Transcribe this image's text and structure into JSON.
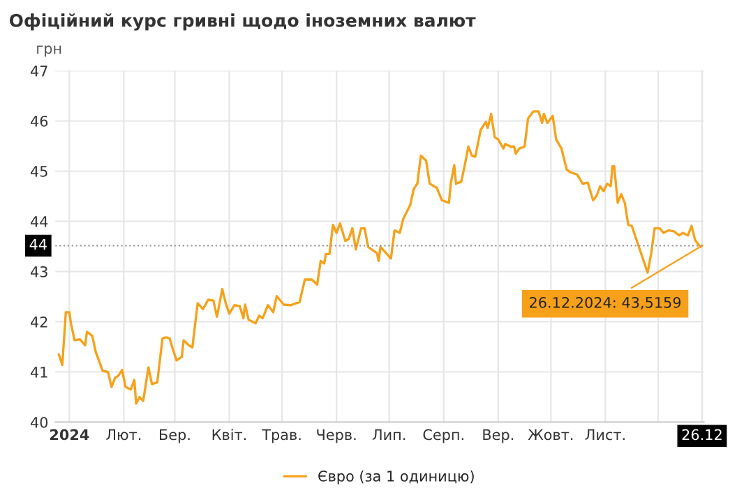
{
  "chart_data": {
    "type": "line",
    "title": "Офіційний курс гривні щодо іноземних валют",
    "ylabel": "грн",
    "x": [
      "2023-12-26",
      "2023-12-28",
      "2023-12-30",
      "2024-01-01",
      "2024-01-02",
      "2024-01-04",
      "2024-01-07",
      "2024-01-10",
      "2024-01-11",
      "2024-01-14",
      "2024-01-16",
      "2024-01-20",
      "2024-01-23",
      "2024-01-25",
      "2024-01-27",
      "2024-01-29",
      "2024-01-31",
      "2024-02-02",
      "2024-02-05",
      "2024-02-07",
      "2024-02-08",
      "2024-02-10",
      "2024-02-12",
      "2024-02-15",
      "2024-02-17",
      "2024-02-20",
      "2024-02-23",
      "2024-02-25",
      "2024-02-27",
      "2024-02-29",
      "2024-03-02",
      "2024-03-05",
      "2024-03-06",
      "2024-03-09",
      "2024-03-11",
      "2024-03-14",
      "2024-03-17",
      "2024-03-20",
      "2024-03-23",
      "2024-03-25",
      "2024-03-28",
      "2024-03-30",
      "2024-04-01",
      "2024-04-04",
      "2024-04-07",
      "2024-04-09",
      "2024-04-10",
      "2024-04-12",
      "2024-04-16",
      "2024-04-18",
      "2024-04-20",
      "2024-04-23",
      "2024-04-26",
      "2024-04-28",
      "2024-05-02",
      "2024-05-06",
      "2024-05-09",
      "2024-05-11",
      "2024-05-14",
      "2024-05-18",
      "2024-05-21",
      "2024-05-23",
      "2024-05-25",
      "2024-05-26",
      "2024-05-28",
      "2024-05-30",
      "2024-06-01",
      "2024-06-03",
      "2024-06-06",
      "2024-06-08",
      "2024-06-10",
      "2024-06-12",
      "2024-06-15",
      "2024-06-17",
      "2024-06-19",
      "2024-06-21",
      "2024-06-24",
      "2024-06-25",
      "2024-06-26",
      "2024-07-02",
      "2024-07-04",
      "2024-07-07",
      "2024-07-09",
      "2024-07-13",
      "2024-07-15",
      "2024-07-17",
      "2024-07-19",
      "2024-07-22",
      "2024-07-24",
      "2024-07-28",
      "2024-07-31",
      "2024-08-04",
      "2024-08-05",
      "2024-08-07",
      "2024-08-08",
      "2024-08-11",
      "2024-08-13",
      "2024-08-15",
      "2024-08-17",
      "2024-08-19",
      "2024-08-22",
      "2024-08-25",
      "2024-08-26",
      "2024-08-28",
      "2024-08-30",
      "2024-09-01",
      "2024-09-04",
      "2024-09-05",
      "2024-09-08",
      "2024-09-10",
      "2024-09-11",
      "2024-09-13",
      "2024-09-16",
      "2024-09-18",
      "2024-09-21",
      "2024-09-24",
      "2024-09-26",
      "2024-09-27",
      "2024-09-29",
      "2024-10-02",
      "2024-10-04",
      "2024-10-07",
      "2024-10-10",
      "2024-10-12",
      "2024-10-16",
      "2024-10-19",
      "2024-10-22",
      "2024-10-23",
      "2024-10-25",
      "2024-10-27",
      "2024-10-29",
      "2024-10-31",
      "2024-11-02",
      "2024-11-04",
      "2024-11-05",
      "2024-11-06",
      "2024-11-08",
      "2024-11-10",
      "2024-11-12",
      "2024-11-14",
      "2024-11-16",
      "2024-11-25",
      "2024-11-27",
      "2024-11-29",
      "2024-12-02",
      "2024-12-04",
      "2024-12-07",
      "2024-12-10",
      "2024-12-13",
      "2024-12-15",
      "2024-12-18",
      "2024-12-20",
      "2024-12-22",
      "2024-12-25",
      "2024-12-26"
    ],
    "series": [
      {
        "name": "Євро (за 1 одиницю)",
        "color": "#f7a11a",
        "values": [
          41.35,
          41.14,
          42.19,
          42.19,
          41.95,
          41.63,
          41.65,
          41.53,
          41.8,
          41.72,
          41.4,
          41.02,
          41.0,
          40.7,
          40.88,
          40.93,
          41.04,
          40.7,
          40.65,
          40.84,
          40.37,
          40.5,
          40.42,
          41.09,
          40.76,
          40.79,
          41.67,
          41.69,
          41.67,
          41.44,
          41.23,
          41.3,
          41.63,
          41.53,
          41.49,
          42.37,
          42.25,
          42.44,
          42.42,
          42.1,
          42.65,
          42.37,
          42.16,
          42.33,
          42.31,
          42.07,
          42.34,
          42.04,
          41.97,
          42.12,
          42.07,
          42.33,
          42.19,
          42.51,
          42.34,
          42.33,
          42.37,
          42.39,
          42.84,
          42.84,
          42.74,
          43.21,
          43.16,
          43.35,
          43.35,
          43.93,
          43.77,
          43.96,
          43.61,
          43.65,
          43.86,
          43.44,
          43.86,
          43.86,
          43.49,
          43.44,
          43.37,
          43.21,
          43.49,
          43.26,
          43.82,
          43.77,
          44.05,
          44.33,
          44.65,
          44.75,
          45.31,
          45.21,
          44.75,
          44.67,
          44.42,
          44.37,
          44.75,
          45.12,
          44.75,
          44.79,
          45.12,
          45.49,
          45.31,
          45.29,
          45.82,
          45.98,
          45.86,
          46.14,
          45.68,
          45.63,
          45.45,
          45.54,
          45.49,
          45.49,
          45.35,
          45.45,
          45.49,
          46.05,
          46.19,
          46.19,
          45.96,
          46.14,
          45.96,
          46.1,
          45.63,
          45.45,
          45.03,
          44.98,
          44.93,
          44.75,
          44.77,
          44.65,
          44.42,
          44.51,
          44.7,
          44.6,
          44.75,
          44.7,
          45.1,
          45.1,
          44.37,
          44.54,
          44.37,
          43.93,
          43.91,
          42.98,
          43.35,
          43.86,
          43.86,
          43.77,
          43.82,
          43.8,
          43.72,
          43.77,
          43.72,
          43.91,
          43.63,
          43.49,
          43.5159
        ]
      }
    ],
    "xlim": [
      "2023-12-24",
      "2024-12-27"
    ],
    "xticks": [
      {
        "value": "2024-01-01",
        "label": "2024"
      },
      {
        "value": "2024-02-01",
        "label": "Лют."
      },
      {
        "value": "2024-03-01",
        "label": "Бер."
      },
      {
        "value": "2024-04-01",
        "label": "Квіт."
      },
      {
        "value": "2024-05-01",
        "label": "Трав."
      },
      {
        "value": "2024-06-01",
        "label": "Черв."
      },
      {
        "value": "2024-07-01",
        "label": "Лип."
      },
      {
        "value": "2024-08-01",
        "label": "Серп."
      },
      {
        "value": "2024-09-01",
        "label": "Вер."
      },
      {
        "value": "2024-10-01",
        "label": "Жовт."
      },
      {
        "value": "2024-11-01",
        "label": "Лист."
      },
      {
        "value": "2024-12-01",
        "label": null
      },
      {
        "value": "2024-12-26",
        "label": "26.12"
      }
    ],
    "ylim": [
      40,
      47
    ],
    "yticks": [
      40,
      41,
      42,
      43,
      44,
      45,
      46,
      47
    ],
    "ref_lines": [
      {
        "axis": "y",
        "value": 43.5159,
        "label": "44",
        "line_style": "dotted",
        "color": "#999999"
      }
    ],
    "annotations": [
      {
        "text": "26.12.2024: 43,5159",
        "x": "2024-12-26",
        "y": 43.5159
      }
    ],
    "grid": true,
    "legend": "bottom",
    "marker": "none",
    "line_style": "solid"
  }
}
